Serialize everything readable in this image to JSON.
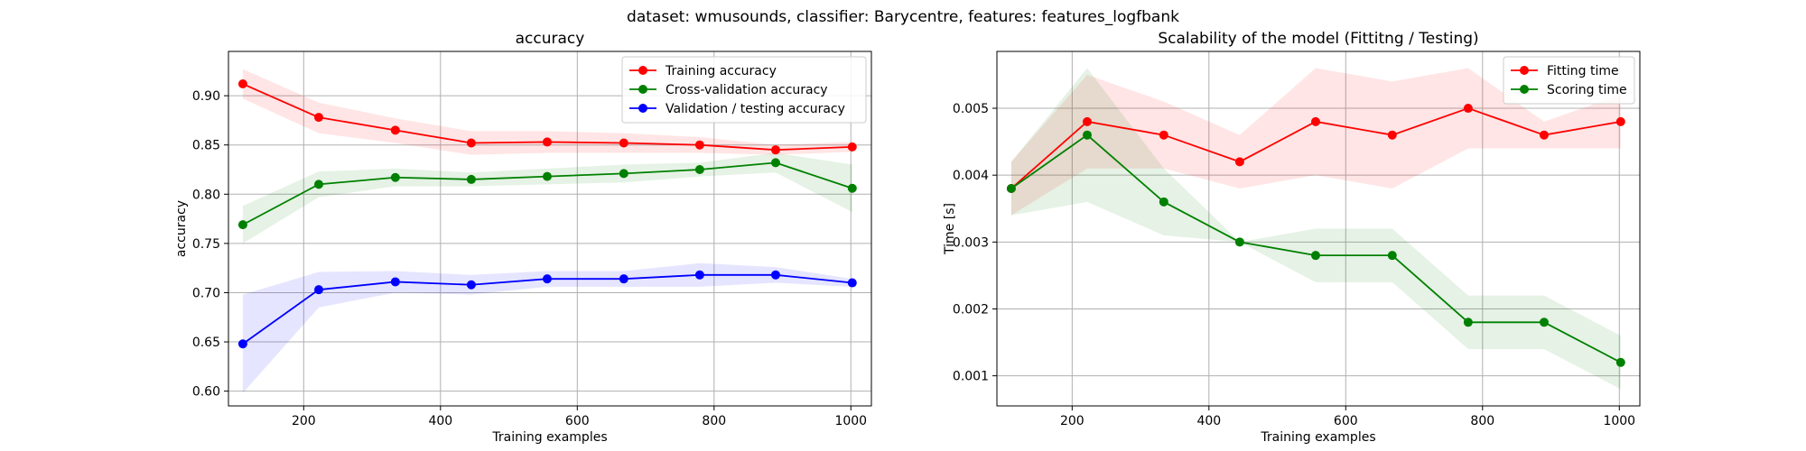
{
  "suptitle": "dataset: wmusounds, classifier: Barycentre, features: features_logfbank",
  "chart_data": [
    {
      "type": "line",
      "title": "accuracy",
      "xlabel": "Training examples",
      "ylabel": "accuracy",
      "xlim": [
        90,
        1030
      ],
      "ylim": [
        0.585,
        0.945
      ],
      "xticks": [
        200,
        400,
        600,
        800,
        1000
      ],
      "yticks": [
        0.6,
        0.65,
        0.7,
        0.75,
        0.8,
        0.85,
        0.9
      ],
      "ytick_labels": [
        "0.60",
        "0.65",
        "0.70",
        "0.75",
        "0.80",
        "0.85",
        "0.90"
      ],
      "grid": true,
      "legend_position": "top-right",
      "x": [
        111,
        222,
        334,
        445,
        556,
        668,
        779,
        890,
        1002
      ],
      "series": [
        {
          "name": "Training accuracy",
          "color": "#ff0000",
          "values": [
            0.912,
            0.878,
            0.865,
            0.852,
            0.853,
            0.852,
            0.85,
            0.845,
            0.848
          ],
          "lower": [
            0.897,
            0.862,
            0.852,
            0.84,
            0.842,
            0.842,
            0.842,
            0.84,
            0.843
          ],
          "upper": [
            0.927,
            0.893,
            0.877,
            0.864,
            0.864,
            0.862,
            0.858,
            0.85,
            0.853
          ]
        },
        {
          "name": "Cross-validation accuracy",
          "color": "#008000",
          "values": [
            0.769,
            0.81,
            0.817,
            0.815,
            0.818,
            0.821,
            0.825,
            0.832,
            0.806
          ],
          "lower": [
            0.75,
            0.797,
            0.808,
            0.808,
            0.81,
            0.812,
            0.818,
            0.822,
            0.782
          ],
          "upper": [
            0.788,
            0.823,
            0.826,
            0.822,
            0.826,
            0.83,
            0.832,
            0.842,
            0.83
          ]
        },
        {
          "name": "Validation / testing accuracy",
          "color": "#0000ff",
          "values": [
            0.648,
            0.703,
            0.711,
            0.708,
            0.714,
            0.714,
            0.718,
            0.718,
            0.71
          ],
          "lower": [
            0.598,
            0.685,
            0.7,
            0.698,
            0.706,
            0.706,
            0.706,
            0.71,
            0.706
          ],
          "upper": [
            0.698,
            0.721,
            0.722,
            0.718,
            0.722,
            0.722,
            0.73,
            0.726,
            0.714
          ]
        }
      ]
    },
    {
      "type": "line",
      "title": "Scalability of the model (Fittitng / Testing)",
      "xlabel": "Training examples",
      "ylabel": "Time [s]",
      "xlim": [
        90,
        1030
      ],
      "ylim": [
        0.00055,
        0.00585
      ],
      "xticks": [
        200,
        400,
        600,
        800,
        1000
      ],
      "yticks": [
        0.001,
        0.002,
        0.003,
        0.004,
        0.005
      ],
      "ytick_labels": [
        "0.001",
        "0.002",
        "0.003",
        "0.004",
        "0.005"
      ],
      "grid": true,
      "legend_position": "top-right",
      "x": [
        111,
        222,
        334,
        445,
        556,
        668,
        779,
        890,
        1002
      ],
      "series": [
        {
          "name": "Fitting time",
          "color": "#ff0000",
          "values": [
            0.0038,
            0.0048,
            0.0046,
            0.0042,
            0.0048,
            0.0046,
            0.005,
            0.0046,
            0.0048
          ],
          "lower": [
            0.0034,
            0.0041,
            0.0041,
            0.0038,
            0.004,
            0.0038,
            0.0044,
            0.0044,
            0.0044
          ],
          "upper": [
            0.0042,
            0.0055,
            0.0051,
            0.0046,
            0.0056,
            0.0054,
            0.0056,
            0.0048,
            0.0052
          ]
        },
        {
          "name": "Scoring time",
          "color": "#008000",
          "values": [
            0.0038,
            0.0046,
            0.0036,
            0.003,
            0.0028,
            0.0028,
            0.0018,
            0.0018,
            0.0012
          ],
          "lower": [
            0.0034,
            0.0036,
            0.0031,
            0.003,
            0.0024,
            0.0024,
            0.0014,
            0.0014,
            0.0008
          ],
          "upper": [
            0.0042,
            0.0056,
            0.0041,
            0.003,
            0.0032,
            0.0032,
            0.0022,
            0.0022,
            0.0016
          ]
        }
      ]
    }
  ]
}
